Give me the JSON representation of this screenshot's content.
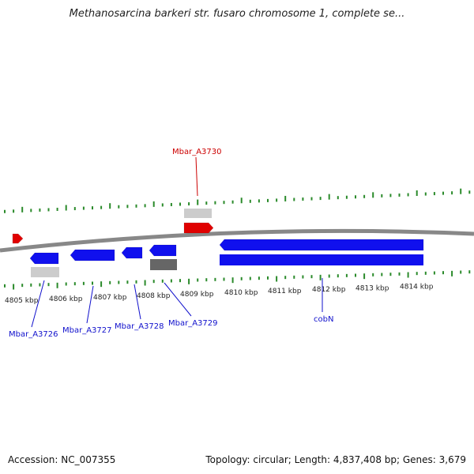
{
  "title": "Methanosarcina barkeri str. fusaro chromosome 1, complete se...",
  "footer": {
    "accession": "Accession: NC_007355",
    "stats": "Topology: circular; Length: 4,837,408 bp; Genes: 3,679"
  },
  "colors": {
    "forward_gene": "#e00000",
    "reverse_gene": "#1010ee",
    "rna_light": "#cccccc",
    "rna_dark": "#666666",
    "backbone": "#888888",
    "ticks": "#2a8a2a",
    "label_red": "#cc0000",
    "label_blue": "#1010cc"
  },
  "chart_data": {
    "type": "genome-map",
    "kbp_labels": [
      "4805 kbp",
      "4806 kbp",
      "4807 kbp",
      "4808 kbp",
      "4809 kbp",
      "4810 kbp",
      "4811 kbp",
      "4812 kbp",
      "4813 kbp",
      "4814 kbp"
    ],
    "features": [
      {
        "strand": "forward",
        "label": "Mbar_A3730"
      },
      {
        "strand": "reverse",
        "label": "Mbar_A3726"
      },
      {
        "strand": "reverse",
        "label": "Mbar_A3727"
      },
      {
        "strand": "reverse",
        "label": "Mbar_A3728"
      },
      {
        "strand": "reverse",
        "label": "Mbar_A3729"
      },
      {
        "strand": "reverse",
        "label": "cobN"
      }
    ]
  }
}
